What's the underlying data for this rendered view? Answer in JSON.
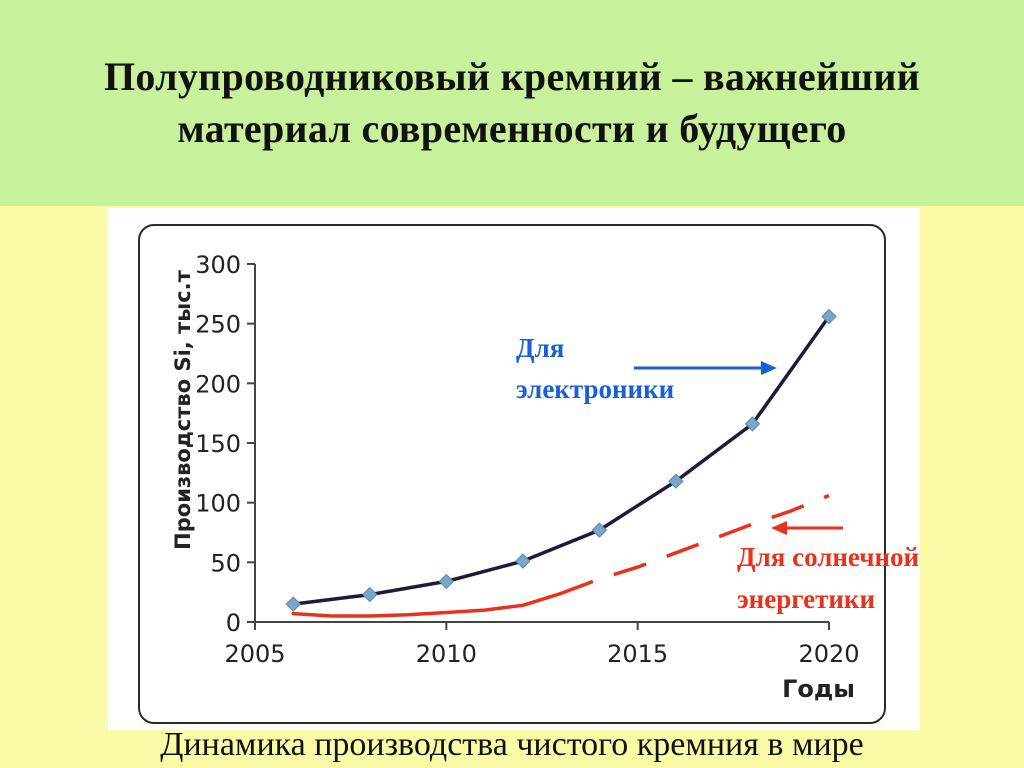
{
  "header": {
    "title_line1": "Полупроводниковый кремний – важнейший",
    "title_line2": "материал современности и будущего"
  },
  "caption": "Динамика производства чистого кремния в мире",
  "chart_data": {
    "type": "line",
    "ylabel": "Производство Si, тыс.т",
    "xlabel": "Годы",
    "xlim": [
      2005,
      2020
    ],
    "ylim": [
      0,
      300
    ],
    "x_ticks": [
      "2005",
      "2010",
      "2015",
      "2020"
    ],
    "y_ticks": [
      "0",
      "50",
      "100",
      "150",
      "200",
      "250",
      "300"
    ],
    "grid": false,
    "series": [
      {
        "x": [
          2006,
          2008,
          2010,
          2012,
          2014,
          2016,
          2018,
          2020
        ],
        "y": [
          15,
          23,
          34,
          51,
          77,
          118,
          166,
          256
        ],
        "color": "#1f1a3a",
        "marker_color": "#7aa6c8"
      },
      {
        "x": [
          2006,
          2007,
          2008,
          2009,
          2010,
          2011,
          2012,
          2013,
          2014,
          2015,
          2016,
          2017,
          2018,
          2019,
          2020
        ],
        "y": [
          7,
          5,
          5,
          6,
          8,
          10,
          14,
          24,
          36,
          46,
          58,
          70,
          82,
          93,
          106
        ],
        "color": "#e8321b",
        "style": "dashed"
      }
    ],
    "annotations": [
      {
        "text_lines": [
          "Для",
          "электроники"
        ],
        "color": "#1a5fd6",
        "arrow": "right"
      },
      {
        "text_lines": [
          "Для  солнечной",
          "энергетики"
        ],
        "color": "#e8321b",
        "arrow": "left"
      }
    ]
  }
}
